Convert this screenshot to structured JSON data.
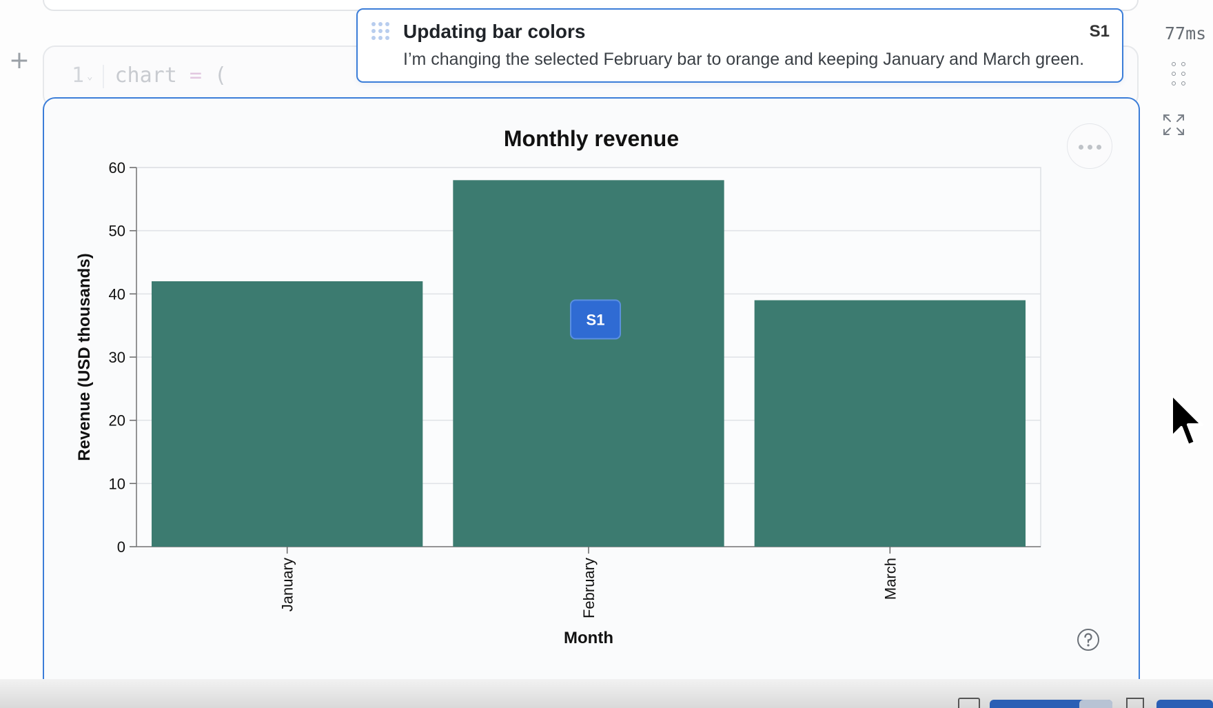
{
  "editor": {
    "add_cell_icon": "plus-icon",
    "code_line": {
      "line_number": "1",
      "text_name": "chart",
      "text_op": "=",
      "text_paren": "("
    }
  },
  "toast": {
    "icon": "drag-grip-icon",
    "title": "Updating bar colors",
    "badge": "S1",
    "message": "I’m changing the selected February bar to orange and keeping January and March green."
  },
  "cell_meta": {
    "timing": "77ms",
    "drag_icon": "drag-handle-icon",
    "expand_icon": "expand-icon"
  },
  "output": {
    "more_icon": "more-options-icon",
    "help_icon": "help-circle-icon"
  },
  "selection_badge": "S1",
  "colors": {
    "bar": "#3c7b70",
    "accent": "#3b7dd8",
    "badge": "#2f6bd3"
  },
  "chart_data": {
    "type": "bar",
    "title": "Monthly revenue",
    "xlabel": "Month",
    "ylabel": "Revenue (USD thousands)",
    "categories": [
      "January",
      "February",
      "March"
    ],
    "values": [
      42,
      58,
      39
    ],
    "ylim": [
      0,
      60
    ],
    "yticks": [
      0,
      10,
      20,
      30,
      40,
      50,
      60
    ],
    "grid": true,
    "selected_category": "February"
  }
}
